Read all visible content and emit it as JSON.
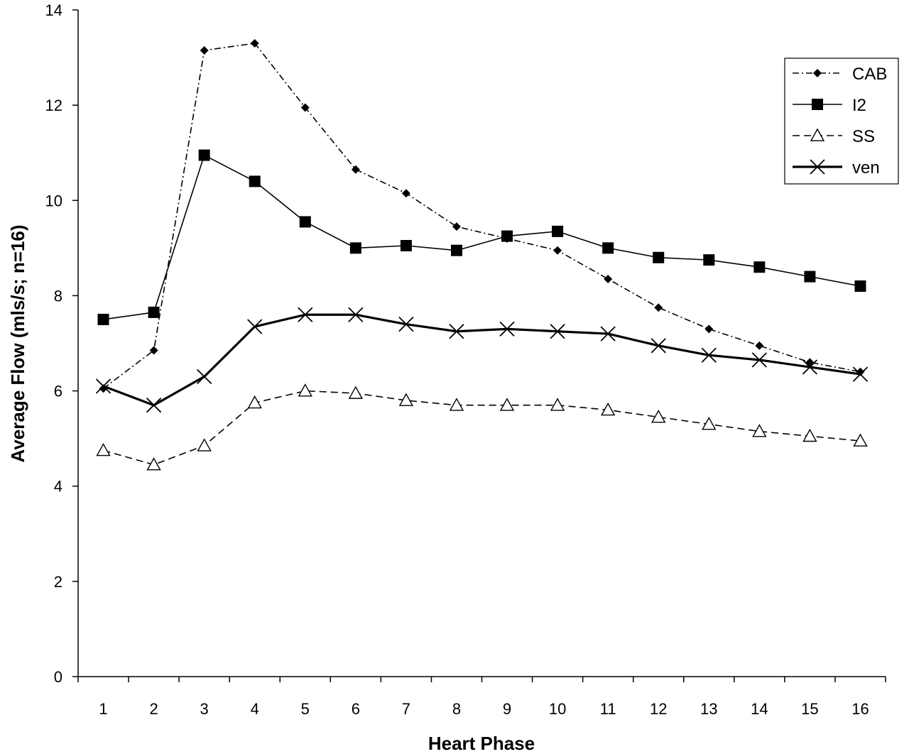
{
  "chart_data": {
    "type": "line",
    "title": "",
    "xlabel": "Heart Phase",
    "ylabel": "Average Flow (mls/s; n=16)",
    "categories": [
      "1",
      "2",
      "3",
      "4",
      "5",
      "6",
      "7",
      "8",
      "9",
      "10",
      "11",
      "12",
      "13",
      "14",
      "15",
      "16"
    ],
    "ylim": [
      0,
      14
    ],
    "yticks": [
      "0",
      "2",
      "4",
      "6",
      "8",
      "10",
      "12",
      "14"
    ],
    "grid": false,
    "legend_position": "top-right",
    "series": [
      {
        "name": "CAB",
        "marker": "diamond-icon",
        "line": "dash-dot",
        "values": [
          6.05,
          6.85,
          13.15,
          13.3,
          11.95,
          10.65,
          10.15,
          9.45,
          9.2,
          8.95,
          8.35,
          7.75,
          7.3,
          6.95,
          6.6,
          6.4
        ]
      },
      {
        "name": "I2",
        "marker": "square-icon",
        "line": "solid",
        "values": [
          7.5,
          7.65,
          10.95,
          10.4,
          9.55,
          9.0,
          9.05,
          8.95,
          9.25,
          9.35,
          9.0,
          8.8,
          8.75,
          8.6,
          8.4,
          8.2
        ]
      },
      {
        "name": "SS",
        "marker": "triangle-icon",
        "line": "dashed",
        "values": [
          4.75,
          4.45,
          4.85,
          5.75,
          6.0,
          5.95,
          5.8,
          5.7,
          5.7,
          5.7,
          5.6,
          5.45,
          5.3,
          5.15,
          5.05,
          4.95
        ]
      },
      {
        "name": "ven",
        "marker": "x-icon",
        "line": "thick-solid",
        "values": [
          6.1,
          5.7,
          6.3,
          7.35,
          7.6,
          7.6,
          7.4,
          7.25,
          7.3,
          7.25,
          7.2,
          6.95,
          6.75,
          6.65,
          6.5,
          6.35
        ]
      }
    ]
  }
}
